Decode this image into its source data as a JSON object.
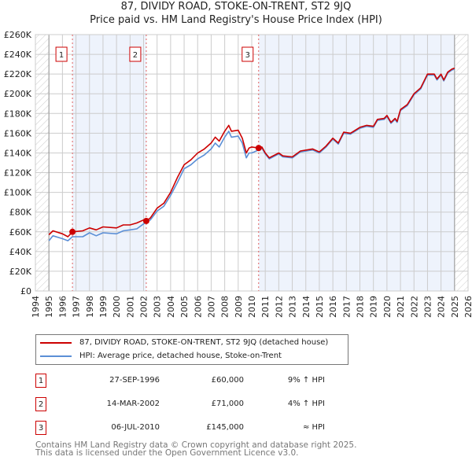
{
  "chart_data": {
    "type": "line",
    "title": "87, DIVIDY ROAD, STOKE-ON-TRENT, ST2 9JQ",
    "subtitle": "Price paid vs. HM Land Registry's House Price Index (HPI)",
    "xlim": [
      1994,
      2026
    ],
    "ylim": [
      0,
      260000
    ],
    "x_ticks": [
      "1994",
      "1995",
      "1996",
      "1997",
      "1998",
      "1999",
      "2000",
      "2001",
      "2002",
      "2003",
      "2004",
      "2005",
      "2006",
      "2007",
      "2008",
      "2009",
      "2010",
      "2011",
      "2012",
      "2013",
      "2014",
      "2015",
      "2016",
      "2017",
      "2018",
      "2019",
      "2020",
      "2021",
      "2022",
      "2023",
      "2024",
      "2025",
      "2026"
    ],
    "y_ticks": [
      "£0",
      "£20K",
      "£40K",
      "£60K",
      "£80K",
      "£100K",
      "£120K",
      "£140K",
      "£160K",
      "£180K",
      "£200K",
      "£220K",
      "£240K",
      "£260K"
    ],
    "grid": true,
    "colors": {
      "property": "#cc0000",
      "hpi": "#5b8fd6",
      "shade": "#eef3fc"
    },
    "series": [
      {
        "name": "87, DIVIDY ROAD, STOKE-ON-TRENT, ST2 9JQ (detached house)",
        "x": [
          1995,
          1995.3,
          1996,
          1996.4,
          1996.74,
          1997.5,
          1998,
          1998.5,
          1999,
          2000,
          2000.5,
          2001,
          2001.5,
          2002,
          2002.2,
          2002.5,
          2003,
          2003.5,
          2004,
          2004.5,
          2005,
          2005.5,
          2006,
          2006.5,
          2007,
          2007.3,
          2007.6,
          2008,
          2008.3,
          2008.5,
          2009,
          2009.3,
          2009.6,
          2009.8,
          2010,
          2010.51,
          2010.75,
          2011,
          2011.3,
          2012,
          2012.3,
          2013,
          2013.6,
          2014.5,
          2015,
          2015.5,
          2016,
          2016.4,
          2016.8,
          2017.3,
          2018,
          2018.5,
          2019,
          2019.3,
          2019.8,
          2020,
          2020.3,
          2020.6,
          2020.75,
          2021,
          2021.5,
          2022,
          2022.5,
          2023,
          2023.5,
          2023.7,
          2024,
          2024.2,
          2024.5,
          2024.8,
          2025
        ],
        "values": [
          57,
          61,
          58,
          55,
          60,
          61,
          64,
          62,
          65,
          64,
          67,
          67,
          69,
          72,
          71,
          74,
          84,
          89,
          100,
          115,
          128,
          133,
          140,
          144,
          150,
          156,
          152,
          162,
          168,
          162,
          163,
          155,
          140,
          145,
          146,
          145,
          146,
          140,
          135,
          140,
          137,
          136,
          142,
          144,
          141,
          147,
          155,
          150,
          161,
          160,
          166,
          168,
          167,
          174,
          175,
          178,
          171,
          175,
          172,
          184,
          189,
          200,
          206,
          220,
          220,
          215,
          220,
          214,
          222,
          225,
          226
        ]
      },
      {
        "name": "HPI: Average price, detached house, Stoke-on-Trent",
        "x": [
          1995,
          1995.3,
          1996,
          1996.4,
          1996.74,
          1997.5,
          1998,
          1998.5,
          1999,
          2000,
          2000.5,
          2001,
          2001.5,
          2002,
          2002.2,
          2002.5,
          2003,
          2003.5,
          2004,
          2004.5,
          2005,
          2005.5,
          2006,
          2006.5,
          2007,
          2007.3,
          2007.6,
          2008,
          2008.3,
          2008.5,
          2009,
          2009.3,
          2009.6,
          2009.8,
          2010,
          2010.51,
          2010.75,
          2011,
          2011.3,
          2012,
          2012.3,
          2013,
          2013.6,
          2014.5,
          2015,
          2015.5,
          2016,
          2016.4,
          2016.8,
          2017.3,
          2018,
          2018.5,
          2019,
          2019.3,
          2019.8,
          2020,
          2020.3,
          2020.6,
          2020.75,
          2021,
          2021.5,
          2022,
          2022.5,
          2023,
          2023.5,
          2023.7,
          2024,
          2024.2,
          2024.5,
          2024.8,
          2025
        ],
        "values": [
          51,
          56,
          53,
          51,
          55,
          55,
          59,
          56,
          59,
          58,
          61,
          62,
          63,
          68,
          70,
          72,
          81,
          86,
          97,
          110,
          124,
          128,
          134,
          138,
          144,
          150,
          146,
          156,
          162,
          156,
          157,
          150,
          135,
          140,
          140,
          143,
          145,
          139,
          134,
          139,
          136,
          135,
          141,
          143,
          140,
          146,
          154,
          149,
          160,
          159,
          165,
          167,
          166,
          173,
          174,
          177,
          170,
          174,
          171,
          183,
          188,
          199,
          205,
          219,
          219,
          214,
          219,
          213,
          221,
          224,
          225
        ]
      }
    ],
    "sales": [
      {
        "label": "1",
        "x": 1996.74,
        "value": 60
      },
      {
        "label": "2",
        "x": 2002.2,
        "value": 71
      },
      {
        "label": "3",
        "x": 2010.51,
        "value": 145
      }
    ]
  },
  "legend": {
    "property": "87, DIVIDY ROAD, STOKE-ON-TRENT, ST2 9JQ (detached house)",
    "hpi": "HPI: Average price, detached house, Stoke-on-Trent"
  },
  "sales_table": [
    {
      "num": "1",
      "date": "27-SEP-1996",
      "price": "£60,000",
      "hpi": "9% ↑ HPI"
    },
    {
      "num": "2",
      "date": "14-MAR-2002",
      "price": "£71,000",
      "hpi": "4% ↑ HPI"
    },
    {
      "num": "3",
      "date": "06-JUL-2010",
      "price": "£145,000",
      "hpi": "≈ HPI"
    }
  ],
  "footer": {
    "line1": "Contains HM Land Registry data © Crown copyright and database right 2025.",
    "line2": "This data is licensed under the Open Government Licence v3.0."
  }
}
